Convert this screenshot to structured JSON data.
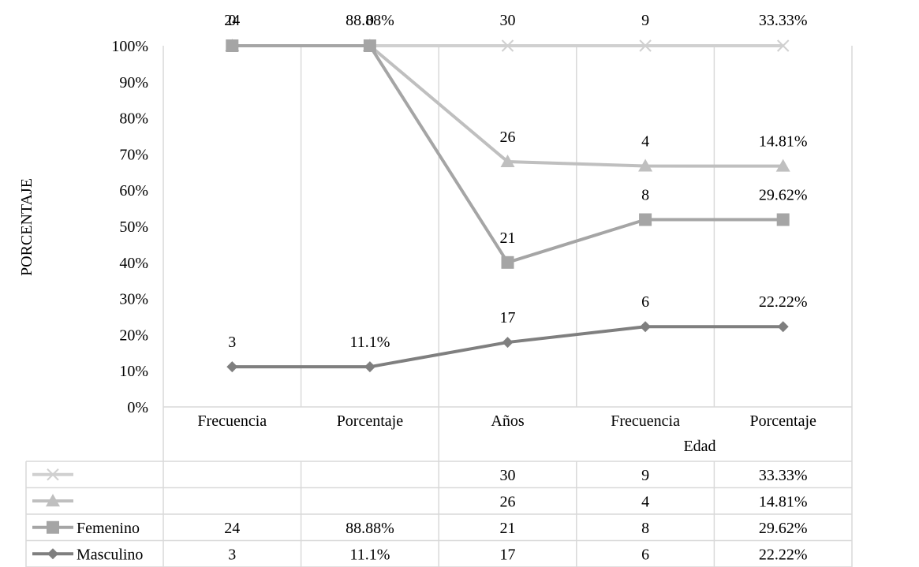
{
  "chart_data": {
    "type": "line",
    "ylabel": "PORCENTAJE",
    "xlabel": "",
    "group_label": "Edad",
    "categories": [
      "Frecuencia",
      "Porcentaje",
      "Años",
      "Frecuencia",
      "Porcentaje"
    ],
    "ylim": [
      0,
      100
    ],
    "y_ticks": [
      "0%",
      "10%",
      "20%",
      "30%",
      "40%",
      "50%",
      "60%",
      "70%",
      "80%",
      "90%",
      "100%"
    ],
    "stacked": "percent",
    "grid": "vertical",
    "legend": "data-table-below",
    "series": [
      {
        "name": "Masculino",
        "marker": "diamond",
        "color": "#7f7f7f",
        "values": [
          "3",
          "11.1%",
          "17",
          "6",
          "22.22%"
        ],
        "cumulative_percent": [
          11.11,
          11.1,
          17.89,
          22.22,
          22.22
        ]
      },
      {
        "name": "Femenino",
        "marker": "square",
        "color": "#a5a5a5",
        "values": [
          "24",
          "88.88%",
          "21",
          "8",
          "29.62%"
        ],
        "cumulative_percent": [
          100,
          100,
          40.0,
          51.85,
          51.85
        ]
      },
      {
        "name": "",
        "marker": "triangle",
        "color": "#bfbfbf",
        "values": [
          "",
          "",
          "26",
          "4",
          "14.81%"
        ],
        "cumulative_percent": [
          100,
          100,
          67.9,
          66.7,
          66.67
        ]
      },
      {
        "name": "",
        "marker": "x",
        "color": "#d0d0d0",
        "values": [
          "",
          "",
          "30",
          "9",
          "33.33%"
        ],
        "cumulative_percent": [
          100,
          100,
          100,
          100,
          100
        ]
      }
    ],
    "top_labels": [
      "24",
      "88.88%",
      "30",
      "9",
      "33.33%"
    ],
    "top_labels_overlap": [
      "0",
      "0"
    ]
  }
}
